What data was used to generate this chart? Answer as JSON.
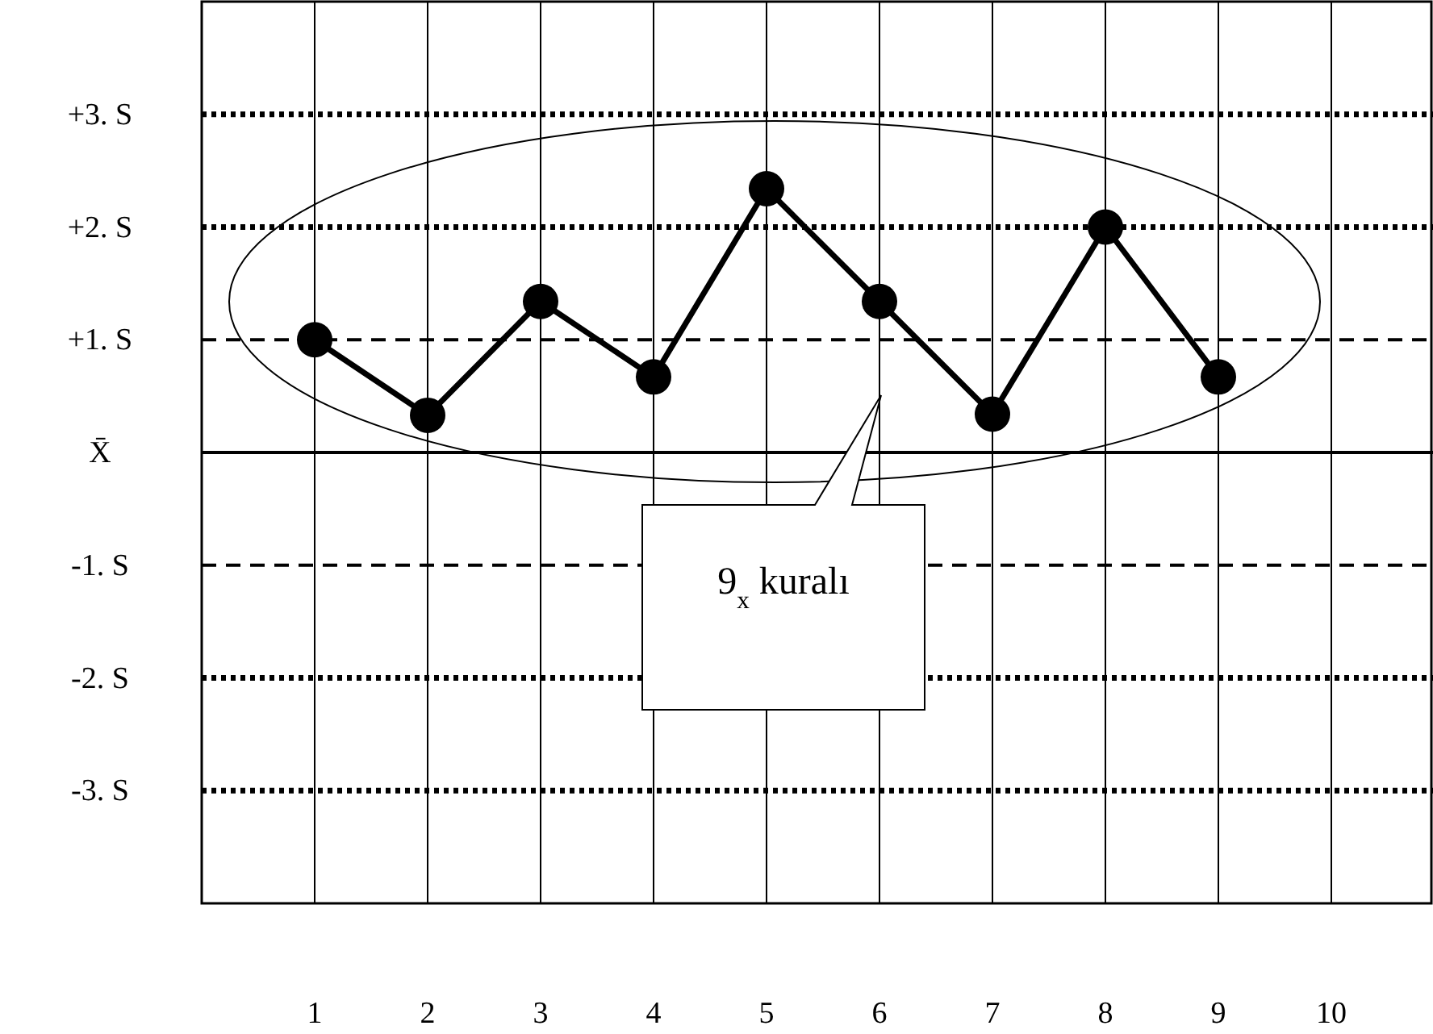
{
  "chart_data": {
    "type": "line",
    "x": [
      1,
      2,
      3,
      4,
      5,
      6,
      7,
      8,
      9
    ],
    "series": [
      {
        "color": "#000000",
        "values": [
          1.0,
          0.33,
          1.34,
          0.67,
          2.34,
          1.34,
          0.34,
          2.0,
          0.67
        ]
      }
    ],
    "marker": "circle",
    "line_style": "solid",
    "grid": "x",
    "xlim": [
      0,
      10.9
    ],
    "xticks": [
      1,
      2,
      3,
      4,
      5,
      6,
      7,
      8,
      9,
      10
    ],
    "ylim": [
      -4,
      4
    ],
    "yticks": [
      {
        "value": 3,
        "label": "+3. S"
      },
      {
        "value": 2,
        "label": "+2. S"
      },
      {
        "value": 1,
        "label": "+1. S"
      },
      {
        "value": 0,
        "label": "X̄"
      },
      {
        "value": -1,
        "label": "-1. S"
      },
      {
        "value": -2,
        "label": "-2. S"
      },
      {
        "value": -3,
        "label": "-3. S"
      }
    ],
    "ref_lines": [
      {
        "axis": "y",
        "value": 3,
        "line_style": "dotted"
      },
      {
        "axis": "y",
        "value": 2,
        "line_style": "dotted"
      },
      {
        "axis": "y",
        "value": 1,
        "line_style": "dashed"
      },
      {
        "axis": "y",
        "value": 0,
        "line_style": "solid"
      },
      {
        "axis": "y",
        "value": -1,
        "line_style": "dashed"
      },
      {
        "axis": "y",
        "value": -2,
        "line_style": "dotted"
      },
      {
        "axis": "y",
        "value": -3,
        "line_style": "dotted"
      }
    ],
    "annotations": [
      "9$_{x}$ kuralı"
    ]
  }
}
